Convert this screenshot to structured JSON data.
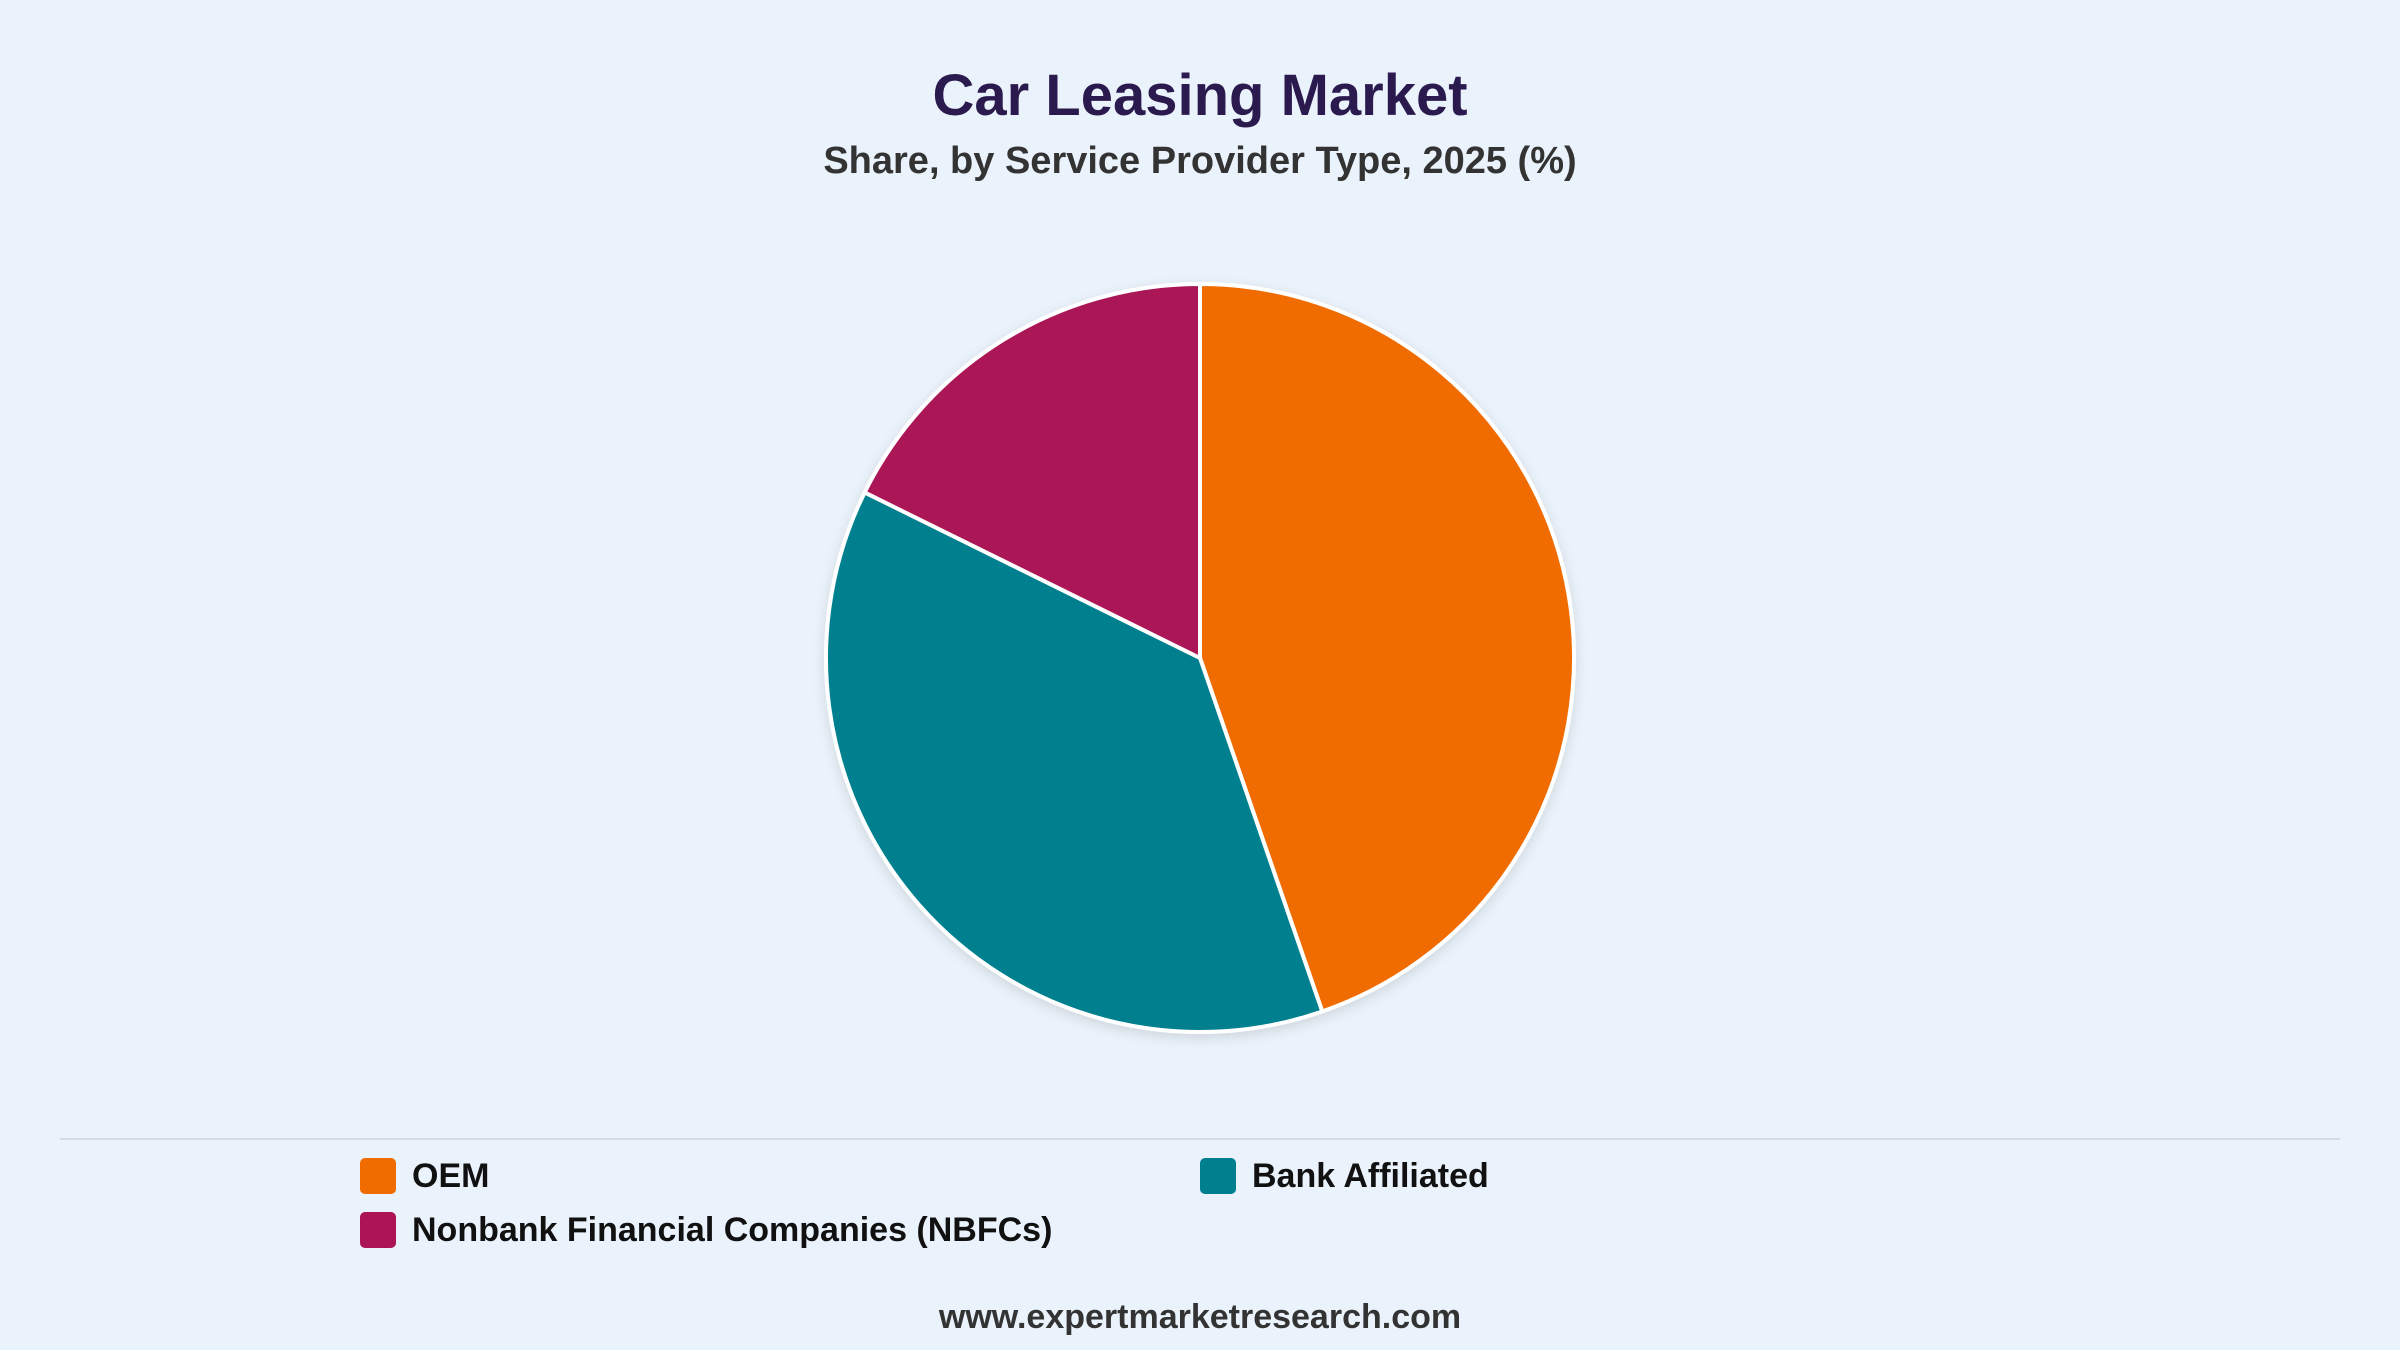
{
  "chart_data": {
    "type": "pie",
    "title": "Car Leasing Market",
    "subtitle": "Share, by Service Provider Type, 2025 (%)",
    "categories": [
      "OEM",
      "Bank Affiliated",
      "Nonbank Financial Companies (NBFCs)"
    ],
    "values": [
      44.7,
      37.6,
      17.7
    ],
    "colors": [
      "#f06c00",
      "#00808f",
      "#ab1556"
    ],
    "legend": "bottom"
  },
  "source": "www.expertmarketresearch.com"
}
